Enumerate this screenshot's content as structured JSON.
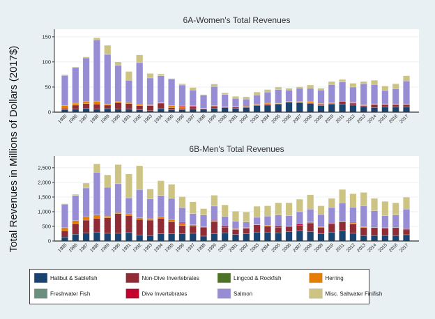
{
  "y_axis_title": "Total Revenues in Millions of Dollars (2017$)",
  "legend": [
    {
      "name": "Halibut & Sablefish",
      "color": "#1a4470"
    },
    {
      "name": "Non-Dive Invertebrates",
      "color": "#8f2c36"
    },
    {
      "name": "Lingcod & Rockfish",
      "color": "#4f7326"
    },
    {
      "name": "Herring",
      "color": "#e57e00"
    },
    {
      "name": "Freshwater Fish",
      "color": "#6b9080"
    },
    {
      "name": "Dive Invertebrates",
      "color": "#c4002e"
    },
    {
      "name": "Salmon",
      "color": "#968dd4"
    },
    {
      "name": "Misc. Saltwater Finifish",
      "color": "#cdc483"
    }
  ],
  "chart_data": [
    {
      "type": "bar",
      "stacked": true,
      "title": "6A-Women's Total Revenues",
      "ylim": [
        0,
        165
      ],
      "yticks": [
        0,
        50,
        100,
        150
      ],
      "grid": true,
      "categories": [
        "1985",
        "1986",
        "1987",
        "1988",
        "1989",
        "1990",
        "1991",
        "1992",
        "1993",
        "1994",
        "1995",
        "1996",
        "1997",
        "1998",
        "1999",
        "2000",
        "2001",
        "2002",
        "2003",
        "2004",
        "2005",
        "2006",
        "2007",
        "2008",
        "2009",
        "2010",
        "2011",
        "2012",
        "2013",
        "2014",
        "2015",
        "2016",
        "2017"
      ],
      "series": [
        {
          "name": "Halibut & Sablefish",
          "values": [
            5,
            6,
            8,
            6,
            7,
            6,
            6,
            5,
            3,
            7,
            5,
            5,
            6,
            6,
            8,
            9,
            8,
            9,
            13,
            14,
            16,
            20,
            19,
            17,
            13,
            16,
            16,
            14,
            11,
            9,
            10,
            10,
            10
          ]
        },
        {
          "name": "Non-Dive Invertebrates",
          "values": [
            3,
            8,
            9,
            10,
            7,
            13,
            11,
            8,
            10,
            11,
            4,
            3,
            5,
            1,
            4,
            1,
            2,
            2,
            1.5,
            2,
            1,
            0.5,
            1,
            1.5,
            2,
            1.5,
            5.5,
            4,
            2,
            6,
            5,
            5,
            5
          ]
        },
        {
          "name": "Lingcod & Rockfish",
          "values": [
            0,
            0,
            0,
            0,
            0,
            0,
            0,
            0,
            0,
            0,
            0,
            0,
            0,
            0,
            0,
            0,
            0,
            0,
            0,
            0,
            0,
            0,
            0,
            0,
            0,
            0,
            0,
            0,
            0,
            0,
            0,
            0,
            0
          ]
        },
        {
          "name": "Herring",
          "values": [
            5,
            4,
            4,
            6,
            2,
            2,
            3,
            2.5,
            1.5,
            1,
            4,
            3,
            0.5,
            1,
            1,
            0.5,
            1,
            1,
            1,
            2,
            1,
            0.5,
            1,
            3.5,
            2.5,
            1.5,
            0,
            1,
            1.5,
            1.5,
            1.5,
            0.5,
            0.5
          ]
        },
        {
          "name": "Freshwater Fish",
          "values": [
            0,
            0,
            0,
            0,
            0,
            0,
            0,
            0,
            0,
            0,
            0,
            0,
            0,
            0,
            0,
            0,
            0,
            0,
            0,
            0,
            0,
            0,
            0,
            0,
            0,
            0,
            0,
            0,
            0,
            0,
            0,
            0,
            0
          ]
        },
        {
          "name": "Dive Invertebrates",
          "values": [
            0,
            0,
            0,
            0,
            0,
            0,
            0,
            0,
            0,
            0,
            0,
            1.5,
            1.5,
            0,
            0,
            0,
            0,
            0,
            0,
            0,
            0,
            0,
            0,
            0,
            0,
            0,
            0.5,
            1,
            0,
            0,
            0,
            0,
            0
          ]
        },
        {
          "name": "Salmon",
          "values": [
            60,
            71,
            87,
            122,
            99,
            72,
            43.5,
            83,
            53.5,
            53.5,
            53,
            41.5,
            31,
            26,
            38,
            24.5,
            16.5,
            14,
            18.5,
            22,
            27,
            23,
            26.5,
            25.5,
            26.5,
            36,
            38,
            30,
            42,
            38.5,
            26.5,
            31,
            46.5
          ]
        },
        {
          "name": "Misc. Saltwater Finifish",
          "values": [
            1.5,
            1,
            2,
            4,
            18,
            7,
            17.5,
            15.5,
            9,
            3.5,
            1,
            2.5,
            5,
            1,
            5,
            3.5,
            4,
            4.5,
            6,
            5,
            5,
            3.5,
            3,
            6.5,
            3.5,
            6,
            5,
            7.5,
            4.5,
            8.5,
            9,
            10,
            10.5
          ]
        }
      ]
    },
    {
      "type": "bar",
      "stacked": true,
      "title": "6B-Men's Total Revenues",
      "ylim": [
        0,
        2900
      ],
      "yticks": [
        0,
        500,
        1000,
        1500,
        2000,
        2500
      ],
      "ytick_labels": [
        "0",
        "500",
        "1,000",
        "1,500",
        "2,000",
        "2,500"
      ],
      "grid": true,
      "categories": [
        "1985",
        "1986",
        "1987",
        "1988",
        "1989",
        "1990",
        "1991",
        "1992",
        "1993",
        "1994",
        "1995",
        "1996",
        "1997",
        "1998",
        "1999",
        "2000",
        "2001",
        "2002",
        "2003",
        "2004",
        "2005",
        "2006",
        "2007",
        "2008",
        "2009",
        "2010",
        "2011",
        "2012",
        "2013",
        "2014",
        "2015",
        "2016",
        "2017"
      ],
      "series": [
        {
          "name": "Halibut & Sablefish",
          "values": [
            136,
            232,
            272,
            304,
            264,
            264,
            288,
            208,
            184,
            248,
            248,
            248,
            264,
            168,
            248,
            280,
            224,
            248,
            304,
            304,
            280,
            320,
            344,
            320,
            248,
            304,
            344,
            264,
            184,
            184,
            184,
            184,
            216
          ]
        },
        {
          "name": "Non-Dive Invertebrates",
          "values": [
            216,
            360,
            440,
            472,
            528,
            672,
            584,
            528,
            528,
            528,
            408,
            280,
            248,
            304,
            408,
            192,
            168,
            184,
            248,
            200,
            192,
            176,
            200,
            296,
            216,
            272,
            312,
            320,
            272,
            272,
            256,
            272,
            168
          ]
        },
        {
          "name": "Lingcod & Rockfish",
          "values": [
            0,
            0,
            0,
            0,
            0,
            0,
            0,
            0,
            0,
            0,
            0,
            0,
            0,
            0,
            0,
            0,
            0,
            0,
            0,
            0,
            0,
            0,
            0,
            0,
            0,
            0,
            16,
            0,
            0,
            8,
            0,
            8,
            0
          ]
        },
        {
          "name": "Herring",
          "values": [
            104,
            104,
            120,
            112,
            56,
            48,
            56,
            56,
            48,
            48,
            80,
            72,
            40,
            24,
            16,
            0,
            24,
            24,
            0,
            24,
            0,
            0,
            0,
            32,
            24,
            0,
            0,
            32,
            32,
            0,
            16,
            0,
            0
          ]
        },
        {
          "name": "Freshwater Fish",
          "values": [
            0,
            0,
            0,
            0,
            0,
            0,
            0,
            0,
            0,
            0,
            0,
            0,
            0,
            0,
            0,
            0,
            0,
            0,
            0,
            0,
            0,
            0,
            0,
            0,
            0,
            0,
            0,
            0,
            0,
            0,
            0,
            0,
            0
          ]
        },
        {
          "name": "Dive Invertebrates",
          "values": [
            0,
            0,
            0,
            0,
            0,
            0,
            0,
            0,
            0,
            0,
            0,
            40,
            0,
            0,
            32,
            40,
            0,
            0,
            8,
            0,
            40,
            8,
            40,
            0,
            0,
            32,
            8,
            24,
            0,
            0,
            0,
            0,
            32
          ]
        },
        {
          "name": "Salmon",
          "values": [
            800,
            856,
            976,
            1456,
            984,
            968,
            544,
            960,
            672,
            728,
            720,
            496,
            384,
            392,
            488,
            328,
            256,
            192,
            248,
            320,
            376,
            360,
            416,
            440,
            416,
            536,
            624,
            512,
            712,
            568,
            408,
            424,
            672
          ]
        },
        {
          "name": "Misc. Saltwater Finifish",
          "values": [
            16,
            40,
            168,
            288,
            424,
            656,
            816,
            816,
            344,
            504,
            480,
            376,
            400,
            216,
            368,
            392,
            344,
            344,
            376,
            352,
            416,
            440,
            424,
            488,
            296,
            312,
            456,
            464,
            456,
            424,
            488,
            416,
            408
          ]
        }
      ]
    }
  ]
}
